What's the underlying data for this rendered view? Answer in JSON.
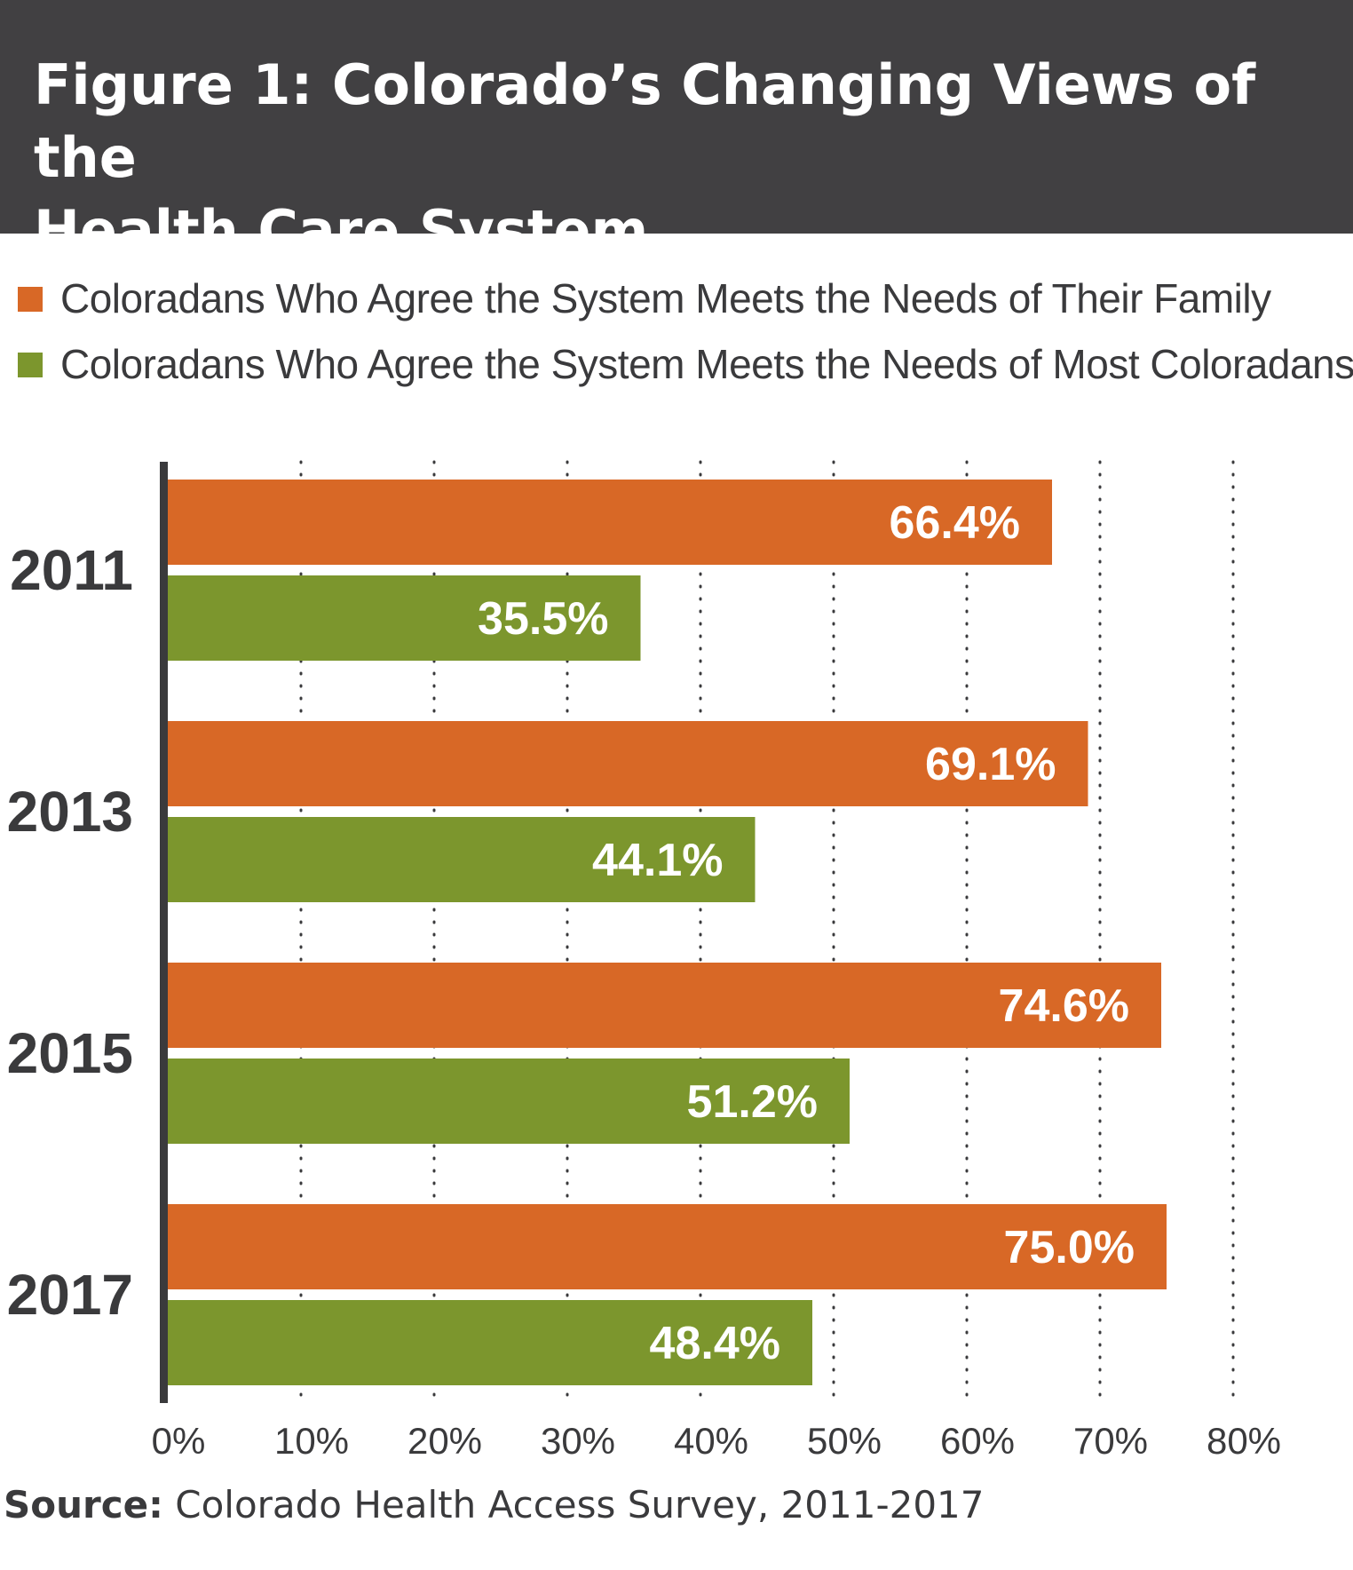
{
  "header": {
    "title_line1": "Figure 1: Colorado’s Changing Views of the",
    "title_line2": "Health Care System"
  },
  "legend": [
    {
      "label": "Coloradans Who Agree the System Meets the Needs of Their Family",
      "color": "#d86826"
    },
    {
      "label": "Coloradans Who Agree the System Meets the Needs of Most Coloradans",
      "color": "#7c962d"
    }
  ],
  "chart_data": {
    "type": "bar",
    "orientation": "horizontal",
    "categories": [
      "2011",
      "2013",
      "2015",
      "2017"
    ],
    "series": [
      {
        "name": "Coloradans Who Agree the System Meets the Needs of Their Family",
        "color": "#d86826",
        "values": [
          66.4,
          69.1,
          74.6,
          75.0
        ],
        "labels": [
          "66.4%",
          "69.1%",
          "74.6%",
          "75.0%"
        ]
      },
      {
        "name": "Coloradans Who Agree the System Meets the Needs of Most Coloradans",
        "color": "#7c962d",
        "values": [
          35.5,
          44.1,
          51.2,
          48.4
        ],
        "labels": [
          "35.5%",
          "44.1%",
          "51.2%",
          "48.4%"
        ]
      }
    ],
    "xlim": [
      0,
      80
    ],
    "xticks": [
      "0%",
      "10%",
      "20%",
      "30%",
      "40%",
      "50%",
      "60%",
      "70%",
      "80%"
    ],
    "grid": "vertical dotted",
    "legend_position": "top-left"
  },
  "source": {
    "prefix": "Source:",
    "text": " Colorado Health Access Survey, 2011-2017"
  }
}
